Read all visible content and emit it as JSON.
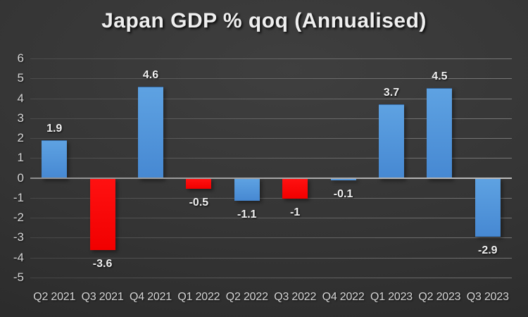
{
  "chart_data": {
    "type": "bar",
    "title": "Japan GDP % qoq (Annualised)",
    "categories": [
      "Q2 2021",
      "Q3 2021",
      "Q4 2021",
      "Q1 2022",
      "Q2 2022",
      "Q3 2022",
      "Q4 2022",
      "Q1 2023",
      "Q2 2023",
      "Q3 2023"
    ],
    "values": [
      1.9,
      -3.6,
      4.6,
      -0.5,
      -1.1,
      -1,
      -0.1,
      3.7,
      4.5,
      -2.9
    ],
    "value_labels": [
      "1.9",
      "-3.6",
      "4.6",
      "-0.5",
      "-1.1",
      "-1",
      "-0.1",
      "3.7",
      "4.5",
      "-2.9"
    ],
    "bar_color_names": [
      "blue",
      "red",
      "blue",
      "red",
      "blue",
      "red",
      "blue",
      "blue",
      "blue",
      "blue"
    ],
    "palette": {
      "blue": [
        "#5ea2e2",
        "#4688d2"
      ],
      "red": [
        "#ff1111",
        "#f10000"
      ]
    },
    "xlabel": "",
    "ylabel": "",
    "ylim": [
      -5,
      6
    ],
    "yticks": [
      6,
      5,
      4,
      3,
      2,
      1,
      0,
      -1,
      -2,
      -3,
      -4,
      -5
    ],
    "grid": true,
    "legend": false,
    "background_color": "#333333",
    "text_color": "#d6d6d6"
  }
}
